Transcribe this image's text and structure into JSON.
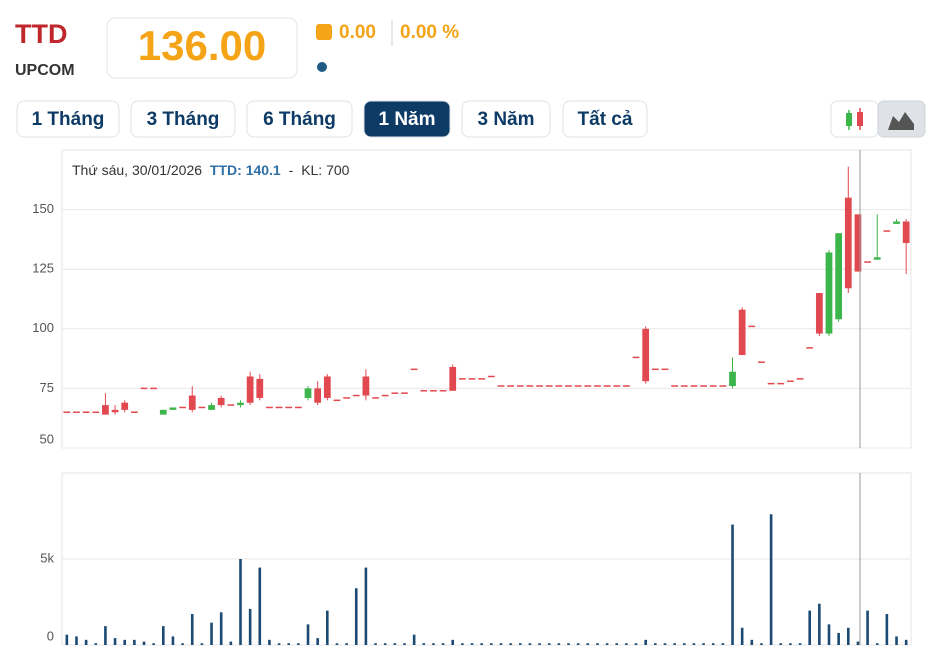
{
  "header": {
    "symbol": "TTD",
    "exchange": "UPCOM",
    "price": "136.00",
    "change": "0.00",
    "change_percent": "0.00 %"
  },
  "tabs": [
    {
      "label": "1 Tháng",
      "active": false
    },
    {
      "label": "3 Tháng",
      "active": false
    },
    {
      "label": "6 Tháng",
      "active": false
    },
    {
      "label": "1 Năm",
      "active": true
    },
    {
      "label": "3 Năm",
      "active": false
    },
    {
      "label": "Tất cả",
      "active": false
    }
  ],
  "tooltip": {
    "date": "Thứ sáu, 30/01/2026",
    "price": "TTD: 140.1",
    "volume": "KL: 700"
  },
  "chart_data": [
    {
      "type": "candlestick",
      "ylim": [
        50,
        175
      ],
      "yticks": [
        50,
        75,
        100,
        125,
        150
      ],
      "grid": true,
      "up_color": "#3cb54a",
      "down_color": "#e2484f",
      "open": [
        65,
        65,
        65,
        65,
        68,
        66,
        69,
        65,
        75,
        75,
        64,
        66,
        67,
        72,
        67,
        66,
        71,
        68,
        68,
        80,
        79,
        67,
        67,
        67,
        67,
        71,
        75,
        80,
        70,
        71,
        72,
        80,
        71,
        72,
        73,
        73,
        83,
        74,
        74,
        74,
        84,
        79,
        79,
        79,
        80,
        76,
        76,
        76,
        76,
        76,
        76,
        76,
        76,
        76,
        76,
        76,
        76,
        76,
        76,
        88,
        100,
        83,
        83,
        76,
        76,
        76,
        76,
        76,
        76,
        76,
        108,
        101,
        86,
        77,
        77,
        78,
        79,
        92,
        115,
        98,
        104,
        155,
        148,
        128,
        129,
        141,
        144,
        145
      ],
      "high": [
        65,
        65,
        65,
        65,
        73,
        68,
        70,
        65,
        75,
        75,
        66,
        67,
        67,
        76,
        67,
        69,
        72,
        68,
        70,
        82,
        81,
        67,
        67,
        67,
        67,
        76,
        78,
        81,
        70,
        71,
        72,
        83,
        71,
        72,
        73,
        73,
        83,
        74,
        74,
        74,
        85,
        79,
        79,
        79,
        80,
        76,
        76,
        76,
        76,
        76,
        76,
        76,
        76,
        76,
        76,
        76,
        76,
        76,
        76,
        88,
        101,
        83,
        83,
        76,
        76,
        76,
        76,
        76,
        76,
        88,
        109,
        101,
        86,
        77,
        77,
        78,
        79,
        92,
        115,
        133,
        140.1,
        168,
        148,
        128,
        148,
        141,
        146,
        146
      ],
      "low": [
        65,
        65,
        65,
        65,
        64,
        64,
        65,
        65,
        75,
        75,
        64,
        66,
        67,
        65,
        67,
        66,
        67,
        68,
        67,
        68,
        70,
        67,
        67,
        67,
        67,
        70,
        68,
        70,
        70,
        71,
        72,
        70,
        71,
        72,
        73,
        73,
        83,
        74,
        74,
        74,
        74,
        79,
        79,
        79,
        80,
        76,
        76,
        76,
        76,
        76,
        76,
        76,
        76,
        76,
        76,
        76,
        76,
        76,
        76,
        88,
        77,
        83,
        83,
        76,
        76,
        76,
        76,
        76,
        76,
        75,
        89,
        101,
        86,
        77,
        77,
        78,
        79,
        92,
        97,
        97,
        103,
        115,
        124,
        128,
        129,
        141,
        144,
        123
      ],
      "close": [
        65,
        65,
        65,
        65,
        64,
        65,
        66,
        65,
        75,
        75,
        66,
        67,
        67,
        66,
        67,
        68,
        68,
        68,
        69,
        69,
        71,
        67,
        67,
        67,
        67,
        75,
        69,
        71,
        70,
        71,
        72,
        72,
        71,
        72,
        73,
        73,
        83,
        74,
        74,
        74,
        74,
        79,
        79,
        79,
        80,
        76,
        76,
        76,
        76,
        76,
        76,
        76,
        76,
        76,
        76,
        76,
        76,
        76,
        76,
        88,
        78,
        83,
        83,
        76,
        76,
        76,
        76,
        76,
        76,
        82,
        89,
        101,
        86,
        77,
        77,
        78,
        79,
        92,
        98,
        132,
        140.1,
        117,
        124,
        128,
        130,
        141,
        145,
        136
      ]
    },
    {
      "type": "bar",
      "ylim": [
        0,
        10000
      ],
      "yticks": [
        0,
        {
          "value": 5000,
          "label": "5k"
        }
      ],
      "grid": true,
      "color": "#1b4a72",
      "values": [
        600,
        500,
        300,
        100,
        1100,
        400,
        300,
        300,
        200,
        100,
        1100,
        500,
        100,
        1800,
        100,
        1300,
        1900,
        200,
        5000,
        2100,
        4500,
        300,
        100,
        100,
        100,
        1200,
        400,
        2000,
        100,
        100,
        3300,
        4500,
        100,
        100,
        100,
        100,
        600,
        100,
        100,
        100,
        300,
        100,
        100,
        100,
        100,
        100,
        100,
        100,
        100,
        100,
        100,
        100,
        100,
        100,
        100,
        100,
        100,
        100,
        100,
        100,
        300,
        100,
        100,
        100,
        100,
        100,
        100,
        100,
        100,
        7000,
        1000,
        300,
        100,
        7600,
        100,
        100,
        100,
        2000,
        2400,
        1200,
        700,
        1000,
        200,
        2000,
        100,
        1800,
        500,
        300
      ]
    }
  ]
}
